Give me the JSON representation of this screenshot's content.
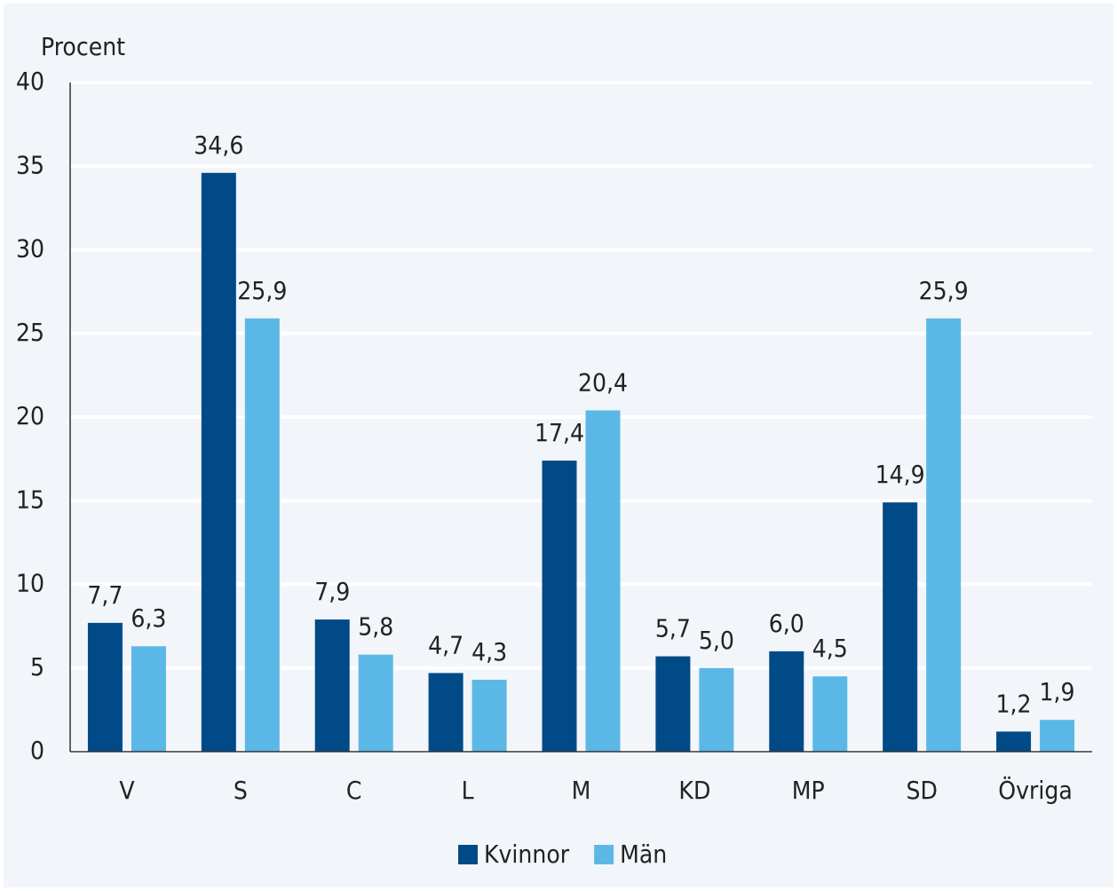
{
  "chart_data": {
    "type": "bar",
    "y_label": "Procent",
    "categories": [
      "V",
      "S",
      "C",
      "L",
      "M",
      "KD",
      "MP",
      "SD",
      "Övriga"
    ],
    "series": [
      {
        "name": "Kvinnor",
        "color": "#004a87",
        "values": [
          7.7,
          34.6,
          7.9,
          4.7,
          17.4,
          5.7,
          6.0,
          14.9,
          1.2
        ],
        "value_labels": [
          "7,7",
          "34,6",
          "7,9",
          "4,7",
          "17,4",
          "5,7",
          "6,0",
          "14,9",
          "1,2"
        ]
      },
      {
        "name": "Män",
        "color": "#5bb8e6",
        "values": [
          6.3,
          25.9,
          5.8,
          4.3,
          20.4,
          5.0,
          4.5,
          25.9,
          1.9
        ],
        "value_labels": [
          "6,3",
          "25,9",
          "5,8",
          "4,3",
          "20,4",
          "5,0",
          "4,5",
          "25,9",
          "1,9"
        ]
      }
    ],
    "ylim": [
      0,
      40
    ],
    "yticks": [
      0,
      5,
      10,
      15,
      20,
      25,
      30,
      35,
      40
    ],
    "grid": true,
    "legend": "bottom"
  }
}
